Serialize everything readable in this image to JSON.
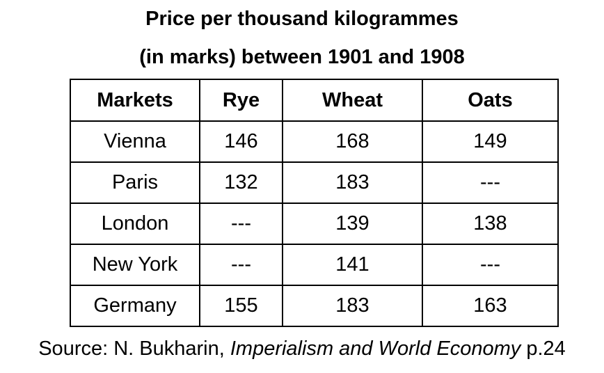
{
  "chart_data": {
    "type": "table",
    "title_line1": "Price per thousand kilogrammes",
    "title_line2": "(in marks) between 1901 and 1908",
    "columns": [
      "Markets",
      "Rye",
      "Wheat",
      "Oats"
    ],
    "rows": [
      [
        "Vienna",
        "146",
        "168",
        "149"
      ],
      [
        "Paris",
        "132",
        "183",
        "---"
      ],
      [
        "London",
        "---",
        "139",
        "138"
      ],
      [
        "New York",
        "---",
        "141",
        "---"
      ],
      [
        "Germany",
        "155",
        "183",
        "163"
      ]
    ]
  },
  "source": {
    "prefix": "Source: N. Bukharin, ",
    "work": "Imperialism and World Economy",
    "suffix": " p.24"
  }
}
